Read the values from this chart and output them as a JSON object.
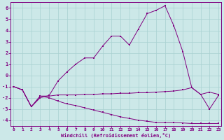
{
  "line_top": {
    "x": [
      0,
      1,
      2,
      3,
      4,
      5,
      6,
      7,
      8,
      9,
      10,
      11,
      12,
      13,
      14,
      15,
      16,
      17,
      18,
      19,
      20,
      21,
      22,
      23
    ],
    "y": [
      -1.0,
      -1.3,
      -2.8,
      -2.0,
      -1.8,
      -0.5,
      0.3,
      1.0,
      1.55,
      1.55,
      2.6,
      3.5,
      3.5,
      2.7,
      4.1,
      5.5,
      5.8,
      6.2,
      4.4,
      2.1,
      -1.1,
      -1.7,
      -3.0,
      -1.8
    ]
  },
  "line_mid": {
    "x": [
      0,
      1,
      2,
      3,
      4,
      5,
      6,
      7,
      8,
      9,
      10,
      11,
      12,
      13,
      14,
      15,
      16,
      17,
      18,
      19,
      20,
      21,
      22,
      23
    ],
    "y": [
      -1.0,
      -1.3,
      -2.8,
      -1.85,
      -1.85,
      -1.75,
      -1.75,
      -1.75,
      -1.7,
      -1.7,
      -1.65,
      -1.65,
      -1.6,
      -1.6,
      -1.55,
      -1.55,
      -1.5,
      -1.45,
      -1.4,
      -1.3,
      -1.1,
      -1.7,
      -1.5,
      -1.7
    ]
  },
  "line_bot": {
    "x": [
      0,
      1,
      2,
      3,
      4,
      5,
      6,
      7,
      8,
      9,
      10,
      11,
      12,
      13,
      14,
      15,
      16,
      17,
      18,
      19,
      20,
      21,
      22,
      23
    ],
    "y": [
      -1.0,
      -1.3,
      -2.8,
      -1.85,
      -2.0,
      -2.3,
      -2.55,
      -2.7,
      -2.9,
      -3.1,
      -3.3,
      -3.5,
      -3.7,
      -3.85,
      -4.0,
      -4.1,
      -4.2,
      -4.2,
      -4.2,
      -4.25,
      -4.3,
      -4.3,
      -4.3,
      -4.3
    ]
  },
  "color": "#800080",
  "bg_color": "#cce8e8",
  "grid_color": "#a8d0d0",
  "xlabel": "Windchill (Refroidissement éolien,°C)",
  "ylim": [
    -4.5,
    6.5
  ],
  "xlim": [
    -0.3,
    23.3
  ],
  "yticks": [
    -4,
    -3,
    -2,
    -1,
    0,
    1,
    2,
    3,
    4,
    5,
    6
  ],
  "xticks": [
    0,
    1,
    2,
    3,
    4,
    5,
    6,
    7,
    8,
    9,
    10,
    11,
    12,
    13,
    14,
    15,
    16,
    17,
    18,
    19,
    20,
    21,
    22,
    23
  ]
}
